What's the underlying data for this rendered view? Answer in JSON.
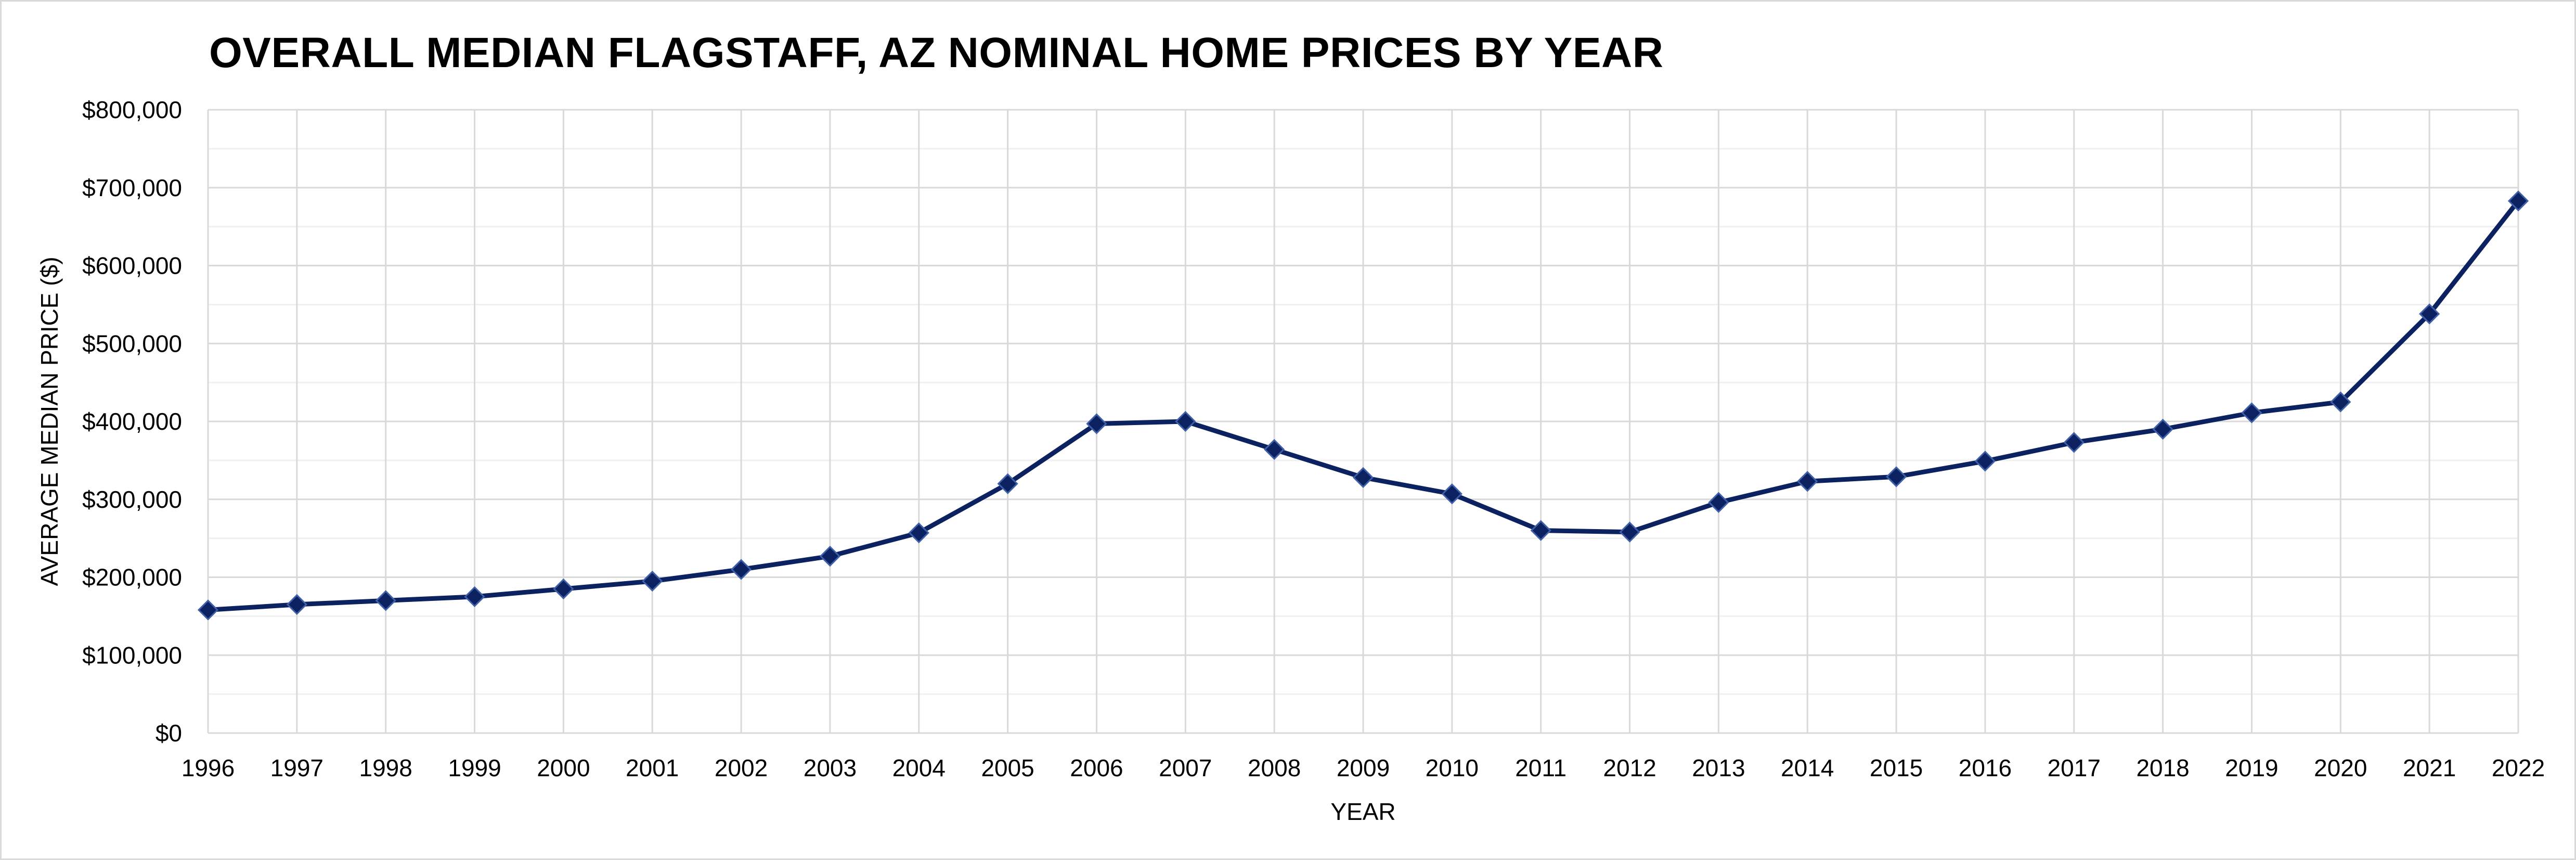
{
  "chart_data": {
    "type": "line",
    "title": "OVERALL MEDIAN FLAGSTAFF, AZ NOMINAL HOME PRICES BY YEAR",
    "xlabel": "YEAR",
    "ylabel": "AVERAGE MEDIAN PRICE ($)",
    "ylim": [
      0,
      800000
    ],
    "y_ticks": [
      0,
      100000,
      200000,
      300000,
      400000,
      500000,
      600000,
      700000,
      800000
    ],
    "y_tick_labels": [
      "$0",
      "$100,000",
      "$200,000",
      "$300,000",
      "$400,000",
      "$500,000",
      "$600,000",
      "$700,000",
      "$800,000"
    ],
    "grid": true,
    "legend": "none",
    "categories": [
      "1996",
      "1997",
      "1998",
      "1999",
      "2000",
      "2001",
      "2002",
      "2003",
      "2004",
      "2005",
      "2006",
      "2007",
      "2008",
      "2009",
      "2010",
      "2011",
      "2012",
      "2013",
      "2014",
      "2015",
      "2016",
      "2017",
      "2018",
      "2019",
      "2020",
      "2021",
      "2022"
    ],
    "series": [
      {
        "values": [
          158000,
          165000,
          170000,
          175000,
          185000,
          195000,
          210000,
          227000,
          257000,
          320000,
          397000,
          400000,
          364000,
          328000,
          307000,
          260000,
          258000,
          296000,
          323000,
          329000,
          349000,
          373000,
          390000,
          411000,
          425000,
          538000,
          683000
        ],
        "color": "#0b2160",
        "marker": "diamond"
      }
    ]
  }
}
